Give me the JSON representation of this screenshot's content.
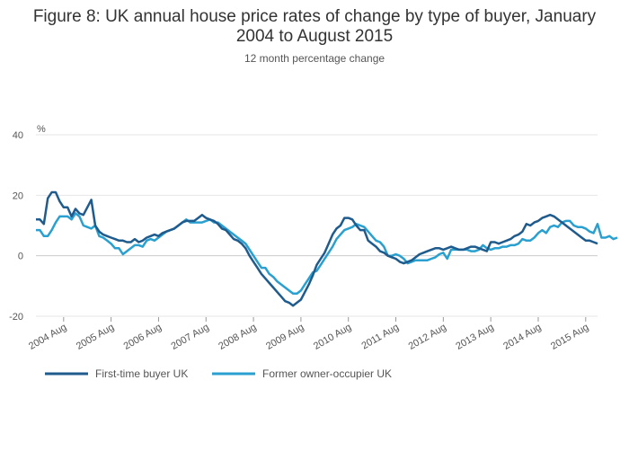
{
  "chart_data": {
    "type": "line",
    "title_line1": "Figure 8: UK annual house price rates of change by type of buyer, January",
    "title_line2": "2004 to August 2015",
    "subtitle": "12 month percentage change",
    "ylabel": "%",
    "ylim": [
      -20,
      40
    ],
    "yticks": [
      40,
      20,
      0,
      -20
    ],
    "x_tick_labels": [
      "2004 Aug",
      "2005 Aug",
      "2006 Aug",
      "2007 Aug",
      "2008 Aug",
      "2009 Aug",
      "2010 Aug",
      "2011 Aug",
      "2012 Aug",
      "2013 Aug",
      "2014 Aug",
      "2015 Aug"
    ],
    "x_start": "2004 Jan",
    "x_end": "2015 Aug",
    "series": [
      {
        "name": "First-time buyer UK",
        "color": "#1f5b8c",
        "values": [
          12,
          12,
          10.5,
          19,
          21,
          21,
          18,
          16,
          16,
          13,
          15.5,
          14,
          13.5,
          16,
          18.5,
          10,
          8,
          7,
          6.5,
          6,
          5.5,
          5,
          5,
          4.5,
          4.5,
          5.5,
          4.5,
          5,
          6,
          6.5,
          7,
          6.5,
          7.5,
          8,
          8.5,
          9,
          10,
          11,
          11.5,
          11.5,
          11.5,
          12.5,
          13.5,
          12.5,
          12,
          11.5,
          10.5,
          9,
          8.5,
          7,
          5.5,
          5,
          4,
          2.5,
          0,
          -2,
          -4,
          -6,
          -7.5,
          -9,
          -10.5,
          -12,
          -13.5,
          -15,
          -15.5,
          -16.5,
          -15.5,
          -14.5,
          -12,
          -9.5,
          -6.5,
          -3,
          -1,
          1,
          4,
          7,
          9,
          10,
          12.5,
          12.5,
          12,
          10,
          8.5,
          8.5,
          5,
          4,
          3,
          1.5,
          1,
          0,
          -0.5,
          -1,
          -2,
          -2.5,
          -2,
          -1.5,
          -0.5,
          0.5,
          1,
          1.5,
          2,
          2.5,
          2.5,
          2,
          2.5,
          3,
          2.5,
          2,
          2,
          2.5,
          3,
          3,
          2.5,
          2,
          1.5,
          4.5,
          4.5,
          4,
          4.5,
          5,
          5.5,
          6.5,
          7,
          8,
          10.5,
          10,
          11,
          11.5,
          12.5,
          13,
          13.5,
          13,
          12,
          11,
          10,
          9,
          8,
          7,
          6,
          5,
          5,
          4.5,
          4
        ]
      },
      {
        "name": "Former owner-occupier UK",
        "color": "#29a0cf",
        "values": [
          8.5,
          8.5,
          6.5,
          6.5,
          8.5,
          11,
          13,
          13,
          13,
          12,
          14,
          13,
          10,
          9.5,
          9,
          10,
          6.5,
          6,
          5,
          4,
          2.5,
          2.5,
          0.5,
          1.5,
          2.5,
          3.5,
          3.5,
          3,
          5,
          5.5,
          5,
          6,
          7,
          8,
          8.5,
          9,
          10,
          11,
          12,
          11,
          11,
          11,
          11,
          11.5,
          12,
          11,
          11,
          10,
          9,
          8,
          7,
          6,
          5,
          4,
          2,
          0,
          -2,
          -4,
          -4,
          -6,
          -7,
          -8.5,
          -9.5,
          -10.5,
          -11.5,
          -12.5,
          -12.5,
          -11.5,
          -9.5,
          -7.5,
          -5.5,
          -5,
          -3,
          -1,
          1,
          3,
          5.5,
          7,
          8.5,
          9,
          9.5,
          10.5,
          10,
          9.5,
          8,
          6.5,
          5,
          4.5,
          3,
          0,
          0,
          0.5,
          0,
          -1,
          -2.5,
          -2,
          -1.5,
          -1.5,
          -1.5,
          -1.5,
          -1,
          -0.5,
          0.5,
          1,
          -1,
          2,
          2,
          2,
          2,
          2,
          1.5,
          1.5,
          2,
          3.5,
          2.5,
          2,
          2.5,
          2.5,
          3,
          3,
          3.5,
          3.5,
          4,
          5.5,
          5,
          5,
          6,
          7.5,
          8.5,
          7.5,
          9.5,
          10,
          9.5,
          11,
          11.5,
          11.5,
          10,
          9.5,
          9.5,
          9,
          8,
          7.5,
          10.5,
          6,
          6,
          6.5,
          5.5,
          6
        ]
      }
    ]
  }
}
